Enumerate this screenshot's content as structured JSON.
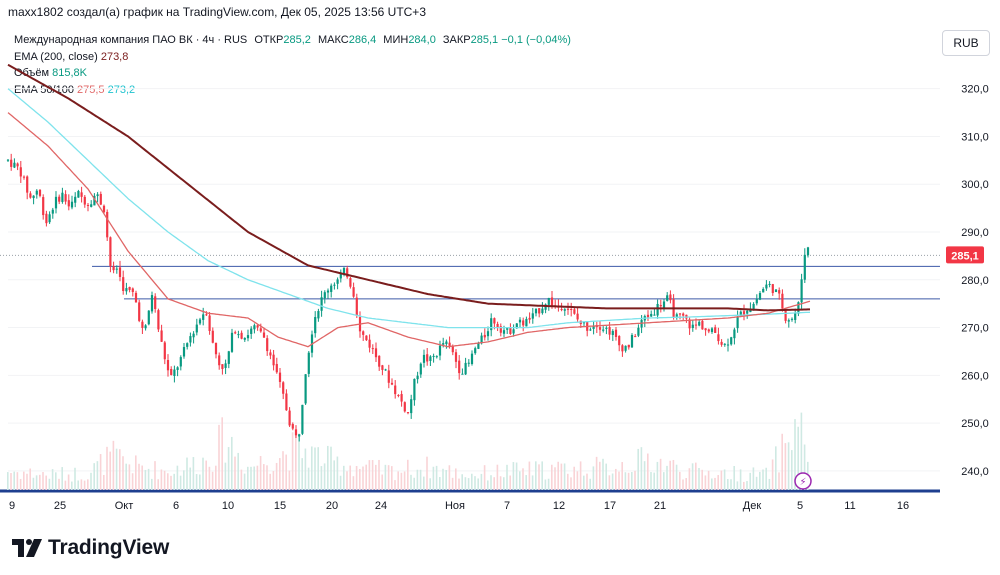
{
  "header": {
    "attribution": "maxx1802 создал(а) график на TradingView.com, Дек 05, 2025 13:56 UTC+3"
  },
  "legend": {
    "symbol_title": "Международная компания ПАО ВК · 4ч · RUS",
    "ohlc": [
      {
        "key": "ОТКР",
        "value": "285,2"
      },
      {
        "key": "МАКС",
        "value": "286,4"
      },
      {
        "key": "МИН",
        "value": "284,0"
      },
      {
        "key": "ЗАКР",
        "value": "285,1"
      }
    ],
    "change": "−0,1 (−0,04%)",
    "ema200_label": "EMA (200, close)",
    "ema200_value": "273,8",
    "volume_label": "Объём",
    "volume_value": "815,8K",
    "ema50_100_label": "EMA 50/100",
    "ema50_value": "275,5",
    "ema100_value": "273,2"
  },
  "currency_button": "RUB",
  "price_label": "285,1",
  "footer": {
    "brand": "TradingView"
  },
  "colors": {
    "up": "#089981",
    "down": "#f23645",
    "ema200": "#7a1d1d",
    "ema50": "#e06666",
    "ema100": "#7fe3ec",
    "hline": "#3d5aa8",
    "price_tag": "#f23645",
    "baseline": "#1e3f8f"
  },
  "chart_data": {
    "type": "candlestick",
    "timeframe": "4h",
    "y_axis": {
      "min": 236,
      "max": 326,
      "ticks": [
        240,
        250,
        260,
        270,
        280,
        290,
        300,
        310,
        320
      ],
      "tick_labels": [
        "240,0",
        "250,0",
        "260,0",
        "270,0",
        "280,0",
        "290,0",
        "300,0",
        "310,0",
        "320,0"
      ]
    },
    "x_axis": {
      "tick_labels": [
        "9",
        "25",
        "Окт",
        "6",
        "10",
        "15",
        "20",
        "24",
        "Ноя",
        "7",
        "12",
        "17",
        "21",
        "Дек",
        "5",
        "11",
        "16"
      ]
    },
    "horizontal_lines": [
      282.8,
      276.0
    ],
    "last_price": 285.1,
    "price_path": [
      [
        0,
        305
      ],
      [
        12,
        303
      ],
      [
        22,
        297
      ],
      [
        30,
        299
      ],
      [
        38,
        292
      ],
      [
        46,
        296
      ],
      [
        54,
        298
      ],
      [
        62,
        295
      ],
      [
        70,
        298
      ],
      [
        80,
        296
      ],
      [
        88,
        298
      ],
      [
        96,
        295
      ],
      [
        104,
        280
      ],
      [
        108,
        283
      ],
      [
        116,
        278
      ],
      [
        126,
        277
      ],
      [
        136,
        268
      ],
      [
        144,
        277
      ],
      [
        152,
        268
      ],
      [
        162,
        259
      ],
      [
        172,
        263
      ],
      [
        182,
        268
      ],
      [
        192,
        272
      ],
      [
        198,
        274
      ],
      [
        204,
        267
      ],
      [
        212,
        262
      ],
      [
        218,
        262
      ],
      [
        226,
        270
      ],
      [
        236,
        268
      ],
      [
        246,
        270
      ],
      [
        256,
        268
      ],
      [
        266,
        262
      ],
      [
        276,
        255
      ],
      [
        282,
        250
      ],
      [
        290,
        246
      ],
      [
        298,
        262
      ],
      [
        306,
        272
      ],
      [
        314,
        276
      ],
      [
        322,
        279
      ],
      [
        330,
        280
      ],
      [
        338,
        282
      ],
      [
        346,
        277
      ],
      [
        352,
        269
      ],
      [
        360,
        267
      ],
      [
        368,
        264
      ],
      [
        376,
        261
      ],
      [
        384,
        258
      ],
      [
        392,
        255
      ],
      [
        400,
        252
      ],
      [
        406,
        258
      ],
      [
        414,
        264
      ],
      [
        422,
        263
      ],
      [
        430,
        265
      ],
      [
        436,
        267
      ],
      [
        444,
        265
      ],
      [
        452,
        261
      ],
      [
        460,
        262
      ],
      [
        468,
        266
      ],
      [
        476,
        268
      ],
      [
        484,
        272
      ],
      [
        492,
        270
      ],
      [
        500,
        269
      ],
      [
        508,
        271
      ],
      [
        516,
        271
      ],
      [
        524,
        272
      ],
      [
        532,
        274
      ],
      [
        540,
        276
      ],
      [
        548,
        274
      ],
      [
        556,
        275
      ],
      [
        564,
        273
      ],
      [
        572,
        271
      ],
      [
        580,
        270
      ],
      [
        588,
        271
      ],
      [
        596,
        270
      ],
      [
        604,
        269
      ],
      [
        612,
        266
      ],
      [
        620,
        266
      ],
      [
        628,
        269
      ],
      [
        636,
        272
      ],
      [
        644,
        273
      ],
      [
        652,
        275
      ],
      [
        660,
        276
      ],
      [
        668,
        272
      ],
      [
        676,
        272
      ],
      [
        684,
        270
      ],
      [
        692,
        271
      ],
      [
        700,
        269
      ],
      [
        708,
        269
      ],
      [
        716,
        266
      ],
      [
        722,
        268
      ],
      [
        730,
        272
      ],
      [
        738,
        274
      ],
      [
        746,
        275
      ],
      [
        754,
        278
      ],
      [
        760,
        279
      ],
      [
        766,
        278
      ],
      [
        772,
        276
      ],
      [
        778,
        272
      ],
      [
        784,
        272
      ],
      [
        790,
        274
      ],
      [
        794,
        281
      ],
      [
        798,
        288
      ],
      [
        802,
        285.1
      ]
    ],
    "ema200_path": [
      [
        0,
        325
      ],
      [
        60,
        318
      ],
      [
        120,
        310
      ],
      [
        180,
        300
      ],
      [
        240,
        290
      ],
      [
        300,
        283
      ],
      [
        360,
        280
      ],
      [
        420,
        277
      ],
      [
        480,
        275
      ],
      [
        540,
        274.5
      ],
      [
        600,
        274
      ],
      [
        660,
        274
      ],
      [
        720,
        274
      ],
      [
        760,
        273.6
      ],
      [
        802,
        273.8
      ]
    ],
    "ema50_path": [
      [
        0,
        315
      ],
      [
        40,
        308
      ],
      [
        80,
        299
      ],
      [
        120,
        286
      ],
      [
        160,
        276
      ],
      [
        200,
        273
      ],
      [
        240,
        272
      ],
      [
        270,
        268
      ],
      [
        300,
        266
      ],
      [
        330,
        270
      ],
      [
        360,
        271
      ],
      [
        400,
        268
      ],
      [
        440,
        266
      ],
      [
        480,
        267
      ],
      [
        520,
        269
      ],
      [
        560,
        270
      ],
      [
        600,
        270.5
      ],
      [
        640,
        271
      ],
      [
        680,
        271.5
      ],
      [
        720,
        272
      ],
      [
        760,
        273
      ],
      [
        802,
        275.5
      ]
    ],
    "ema100_path": [
      [
        0,
        320
      ],
      [
        40,
        313
      ],
      [
        80,
        305
      ],
      [
        120,
        297
      ],
      [
        160,
        290
      ],
      [
        200,
        284
      ],
      [
        240,
        280
      ],
      [
        280,
        277
      ],
      [
        320,
        274
      ],
      [
        360,
        272
      ],
      [
        400,
        271
      ],
      [
        440,
        270
      ],
      [
        480,
        270
      ],
      [
        520,
        270
      ],
      [
        560,
        271
      ],
      [
        600,
        271.5
      ],
      [
        640,
        272
      ],
      [
        680,
        272.2
      ],
      [
        720,
        272.5
      ],
      [
        760,
        272.8
      ],
      [
        802,
        273.2
      ]
    ],
    "volume_path": [
      [
        0,
        0.25
      ],
      [
        40,
        0.2
      ],
      [
        80,
        0.22
      ],
      [
        104,
        0.45
      ],
      [
        130,
        0.3
      ],
      [
        160,
        0.25
      ],
      [
        200,
        0.4
      ],
      [
        218,
        0.7
      ],
      [
        240,
        0.3
      ],
      [
        290,
        0.55
      ],
      [
        330,
        0.35
      ],
      [
        380,
        0.25
      ],
      [
        420,
        0.3
      ],
      [
        460,
        0.2
      ],
      [
        500,
        0.25
      ],
      [
        560,
        0.28
      ],
      [
        600,
        0.3
      ],
      [
        640,
        0.4
      ],
      [
        680,
        0.25
      ],
      [
        720,
        0.22
      ],
      [
        760,
        0.2
      ],
      [
        790,
        0.9
      ],
      [
        802,
        0.5
      ]
    ]
  }
}
